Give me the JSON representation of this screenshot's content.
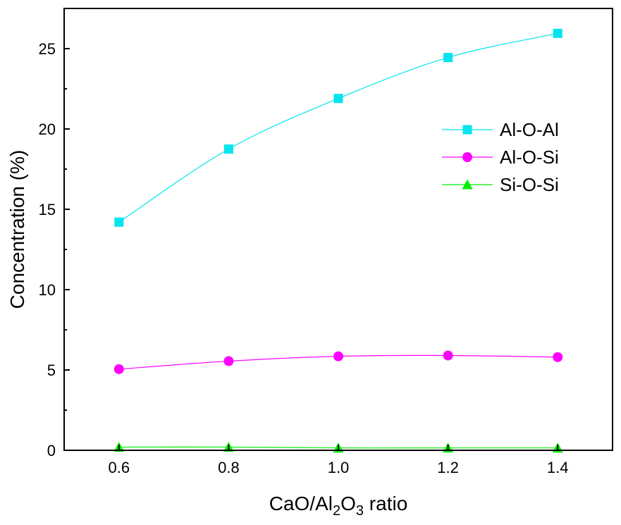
{
  "chart_data": {
    "type": "line",
    "title": "",
    "xlabel": "CaO/Al2O3 ratio",
    "xlabel_parts": {
      "pre": "CaO/Al",
      "sub1": "2",
      "mid": "O",
      "sub2": "3",
      "post": " ratio"
    },
    "ylabel": "Concentration (%)",
    "x": [
      0.6,
      0.8,
      1.0,
      1.2,
      1.4
    ],
    "x_tick_labels": [
      "0.6",
      "0.8",
      "1.0",
      "1.2",
      "1.4"
    ],
    "xlim": [
      0.5,
      1.5
    ],
    "ylim": [
      0,
      27.5
    ],
    "y_ticks": [
      0,
      5,
      10,
      15,
      20,
      25
    ],
    "y_tick_labels": [
      "0",
      "5",
      "10",
      "15",
      "20",
      "25"
    ],
    "grid": false,
    "legend_position": "right-center",
    "series": [
      {
        "name": "Al-O-Al",
        "color": "#00e5ee",
        "marker": "square",
        "values": [
          14.2,
          18.75,
          21.9,
          24.45,
          25.95
        ]
      },
      {
        "name": "Al-O-Si",
        "color": "#ff00ff",
        "marker": "circle",
        "values": [
          5.05,
          5.55,
          5.85,
          5.9,
          5.8
        ]
      },
      {
        "name": "Si-O-Si",
        "color": "#00ee00",
        "marker": "triangle",
        "values": [
          0.2,
          0.2,
          0.15,
          0.15,
          0.15
        ]
      }
    ]
  }
}
